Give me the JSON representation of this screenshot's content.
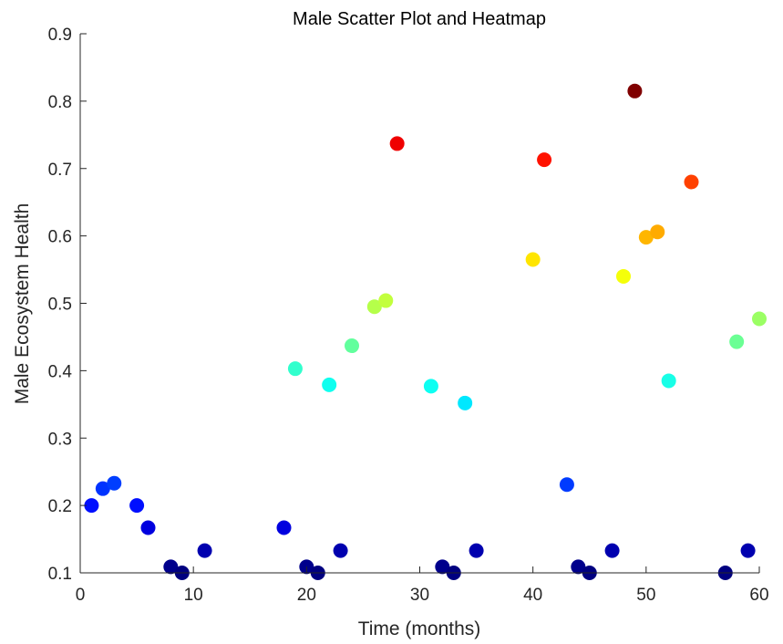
{
  "chart_data": {
    "type": "scatter",
    "title": "Male Scatter Plot and Heatmap",
    "xlabel": "Time (months)",
    "ylabel": "Male Ecosystem Health",
    "xlim": [
      0,
      60
    ],
    "ylim": [
      0.1,
      0.9
    ],
    "xticks": [
      0,
      10,
      20,
      30,
      40,
      50,
      60
    ],
    "xtick_labels": [
      "0",
      "10",
      "20",
      "30",
      "40",
      "50",
      "60"
    ],
    "yticks": [
      0.1,
      0.2,
      0.3,
      0.4,
      0.5,
      0.6,
      0.7,
      0.8,
      0.9
    ],
    "ytick_labels": [
      "0.1",
      "0.2",
      "0.3",
      "0.4",
      "0.5",
      "0.6",
      "0.7",
      "0.8",
      "0.9"
    ],
    "grid": false,
    "colormap": "jet",
    "color_by": "y",
    "points": [
      {
        "x": 1,
        "y": 0.2
      },
      {
        "x": 2,
        "y": 0.225
      },
      {
        "x": 3,
        "y": 0.233
      },
      {
        "x": 5,
        "y": 0.2
      },
      {
        "x": 6,
        "y": 0.167
      },
      {
        "x": 8,
        "y": 0.109
      },
      {
        "x": 9,
        "y": 0.1
      },
      {
        "x": 11,
        "y": 0.133
      },
      {
        "x": 18,
        "y": 0.167
      },
      {
        "x": 19,
        "y": 0.403
      },
      {
        "x": 20,
        "y": 0.109
      },
      {
        "x": 21,
        "y": 0.1
      },
      {
        "x": 22,
        "y": 0.379
      },
      {
        "x": 23,
        "y": 0.133
      },
      {
        "x": 24,
        "y": 0.437
      },
      {
        "x": 26,
        "y": 0.495
      },
      {
        "x": 27,
        "y": 0.504
      },
      {
        "x": 28,
        "y": 0.737
      },
      {
        "x": 31,
        "y": 0.377
      },
      {
        "x": 32,
        "y": 0.109
      },
      {
        "x": 33,
        "y": 0.1
      },
      {
        "x": 34,
        "y": 0.352
      },
      {
        "x": 35,
        "y": 0.133
      },
      {
        "x": 40,
        "y": 0.565
      },
      {
        "x": 41,
        "y": 0.713
      },
      {
        "x": 43,
        "y": 0.231
      },
      {
        "x": 44,
        "y": 0.109
      },
      {
        "x": 45,
        "y": 0.1
      },
      {
        "x": 47,
        "y": 0.133
      },
      {
        "x": 48,
        "y": 0.54
      },
      {
        "x": 49,
        "y": 0.815
      },
      {
        "x": 50,
        "y": 0.598
      },
      {
        "x": 51,
        "y": 0.606
      },
      {
        "x": 52,
        "y": 0.385
      },
      {
        "x": 54,
        "y": 0.68
      },
      {
        "x": 57,
        "y": 0.1
      },
      {
        "x": 58,
        "y": 0.443
      },
      {
        "x": 59,
        "y": 0.133
      },
      {
        "x": 60,
        "y": 0.477
      }
    ]
  }
}
